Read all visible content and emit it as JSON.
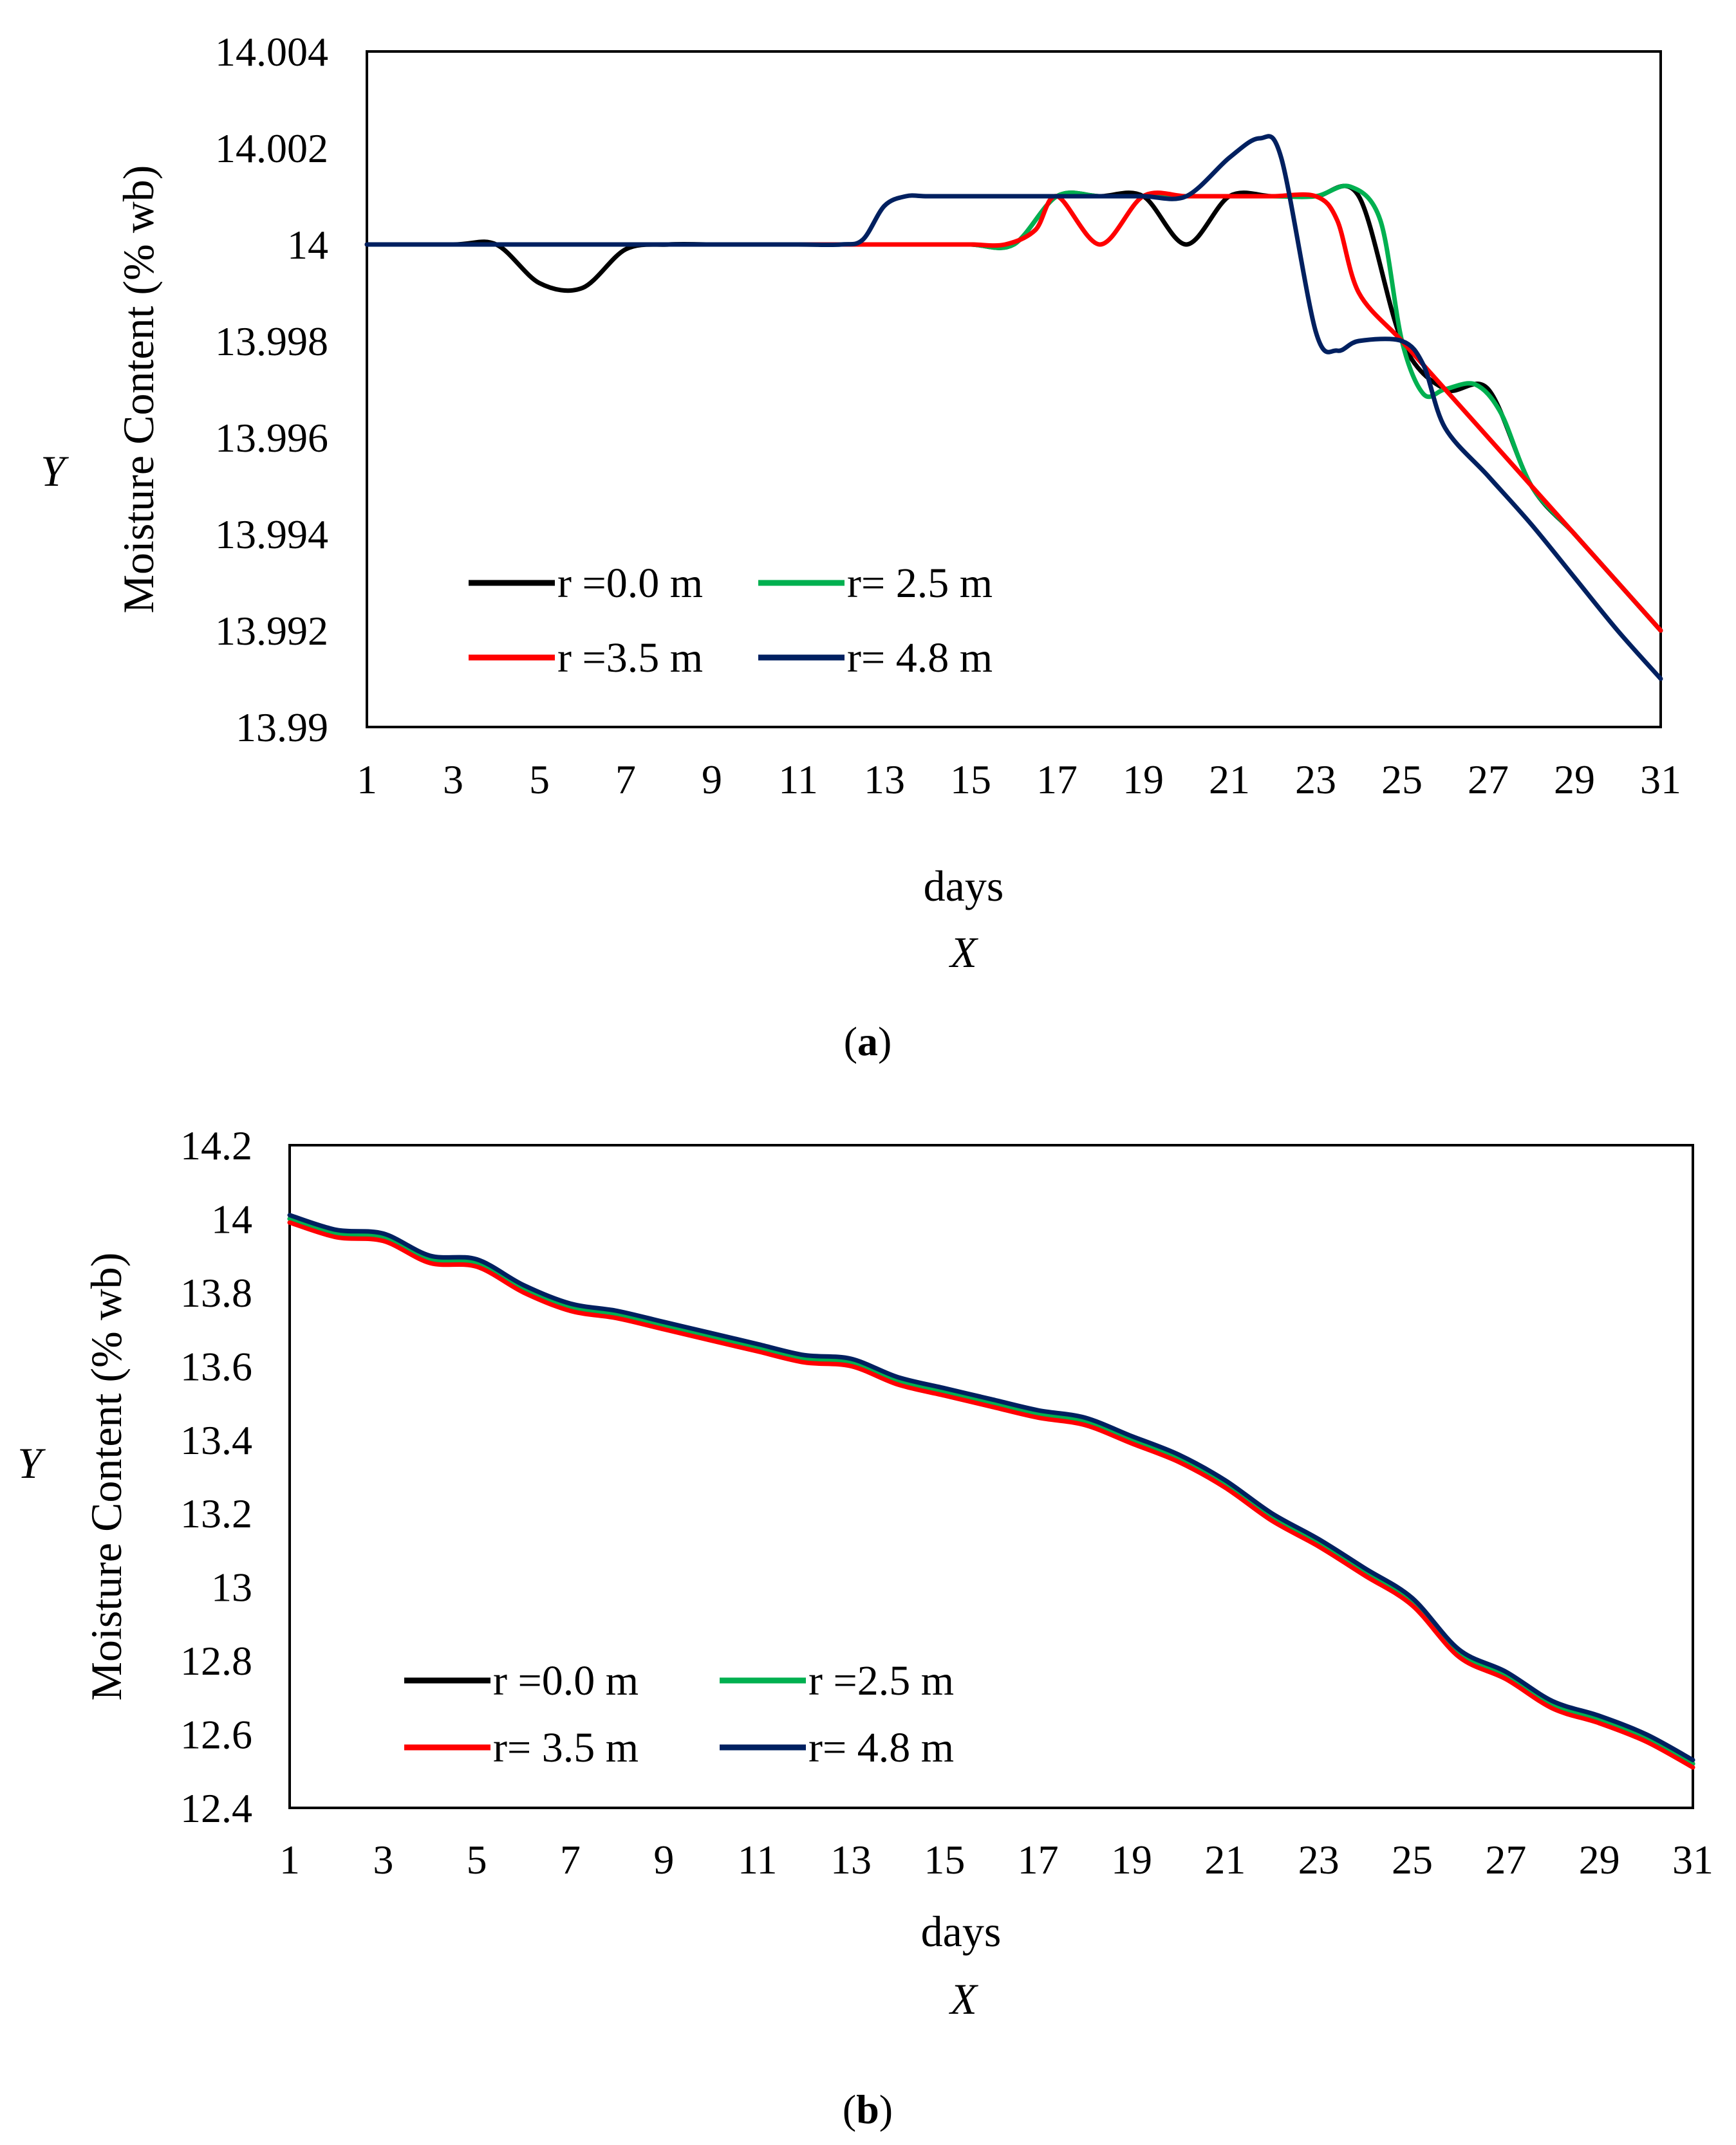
{
  "chart_data": [
    {
      "type": "line",
      "panel": "a",
      "caption": "a",
      "title": "",
      "xlabel": "days",
      "ylabel": "Moisture Content (% wb)",
      "x_variable": "X",
      "y_variable": "Y",
      "xlim": [
        1,
        31
      ],
      "ylim": [
        13.99,
        14.004
      ],
      "x_ticks": [
        "1",
        "3",
        "5",
        "7",
        "9",
        "11",
        "13",
        "15",
        "17",
        "19",
        "21",
        "23",
        "25",
        "27",
        "29",
        "31"
      ],
      "y_ticks": [
        "13.99",
        "13.992",
        "13.994",
        "13.996",
        "13.998",
        "14",
        "14.002",
        "14.004"
      ],
      "x_tick_values": [
        1,
        3,
        5,
        7,
        9,
        11,
        13,
        15,
        17,
        19,
        21,
        23,
        25,
        27,
        29,
        31
      ],
      "y_tick_values": [
        13.99,
        13.992,
        13.994,
        13.996,
        13.998,
        14.0,
        14.002,
        14.004
      ],
      "legend_position": "bottom-left",
      "series": [
        {
          "name": "r =0.0 m",
          "color": "#000000",
          "x": [
            1,
            3,
            4,
            5,
            6,
            7,
            8,
            9,
            10,
            11,
            12,
            13,
            14,
            15,
            16,
            17,
            18,
            19,
            20,
            21,
            22,
            23,
            24,
            25,
            26,
            27,
            28,
            29,
            30,
            31
          ],
          "y": [
            14.0,
            14.0,
            14.0,
            13.9992,
            13.9991,
            13.9999,
            14.0,
            14.0,
            14.0,
            14.0,
            14.0,
            14.0,
            14.0,
            14.0,
            14.0,
            14.001,
            14.001,
            14.001,
            14.0,
            14.001,
            14.001,
            14.001,
            14.001,
            13.998,
            13.997,
            13.997,
            13.995,
            13.994,
            13.993,
            13.992
          ]
        },
        {
          "name": "r= 2.5 m",
          "color": "#00b050",
          "x": [
            1,
            3,
            5,
            7,
            9,
            11,
            12,
            13,
            14,
            15,
            16,
            17,
            18,
            19,
            20,
            21,
            22,
            23,
            23.8,
            24.5,
            25,
            25.5,
            26,
            26.7,
            27.3,
            28,
            29,
            30,
            31
          ],
          "y": [
            14.0,
            14.0,
            14.0,
            14.0,
            14.0,
            14.0,
            14.0,
            14.0,
            14.0,
            14.0,
            14.0,
            14.001,
            14.001,
            14.001,
            14.001,
            14.001,
            14.001,
            14.001,
            14.0012,
            14.0005,
            13.998,
            13.9969,
            13.997,
            13.9971,
            13.9965,
            13.995,
            13.994,
            13.993,
            13.992
          ]
        },
        {
          "name": "r =3.5 m",
          "color": "#ff0000",
          "x": [
            1,
            3,
            5,
            7,
            9,
            11,
            12,
            13,
            14,
            15,
            15.8,
            16.5,
            17,
            18,
            19,
            20,
            21,
            22,
            23,
            23.5,
            24,
            25,
            26,
            27,
            28,
            29,
            30,
            31
          ],
          "y": [
            14.0,
            14.0,
            14.0,
            14.0,
            14.0,
            14.0,
            14.0,
            14.0,
            14.0,
            14.0,
            14.0,
            14.0003,
            14.001,
            14.0,
            14.001,
            14.001,
            14.001,
            14.001,
            14.001,
            14.0005,
            13.999,
            13.998,
            13.997,
            13.996,
            13.995,
            13.994,
            13.993,
            13.992
          ]
        },
        {
          "name": "r= 4.8 m",
          "color": "#002060",
          "x": [
            1,
            3,
            5,
            7,
            9,
            11,
            12,
            12.5,
            13,
            13.5,
            14,
            15,
            16,
            17,
            18,
            19,
            20,
            21,
            21.7,
            22.2,
            23,
            23.5,
            24,
            25,
            25.5,
            26,
            27,
            28,
            29,
            30,
            31
          ],
          "y": [
            14.0,
            14.0,
            14.0,
            14.0,
            14.0,
            14.0,
            14.0,
            14.0001,
            14.0008,
            14.001,
            14.001,
            14.001,
            14.001,
            14.001,
            14.001,
            14.001,
            14.001,
            14.0018,
            14.0022,
            14.0018,
            13.9982,
            13.9978,
            13.998,
            13.998,
            13.9975,
            13.9962,
            13.9952,
            13.9942,
            13.9931,
            13.992,
            13.991
          ]
        }
      ]
    },
    {
      "type": "line",
      "panel": "b",
      "caption": "b",
      "title": "",
      "xlabel": "days",
      "ylabel": "Moisture Content (% wb)",
      "x_variable": "X",
      "y_variable": "Y",
      "xlim": [
        1,
        31
      ],
      "ylim": [
        12.4,
        14.2
      ],
      "x_ticks": [
        "1",
        "3",
        "5",
        "7",
        "9",
        "11",
        "13",
        "15",
        "17",
        "19",
        "21",
        "23",
        "25",
        "27",
        "29",
        "31"
      ],
      "y_ticks": [
        "12.4",
        "12.6",
        "12.8",
        "13",
        "13.2",
        "13.4",
        "13.6",
        "13.8",
        "14",
        "14.2"
      ],
      "x_tick_values": [
        1,
        3,
        5,
        7,
        9,
        11,
        13,
        15,
        17,
        19,
        21,
        23,
        25,
        27,
        29,
        31
      ],
      "y_tick_values": [
        12.4,
        12.6,
        12.8,
        13.0,
        13.2,
        13.4,
        13.6,
        13.8,
        14.0,
        14.2
      ],
      "legend_position": "bottom-left",
      "series": [
        {
          "name": "r =0.0 m",
          "color": "#000000",
          "x": [
            1,
            2,
            3,
            4,
            5,
            6,
            7,
            8,
            9,
            10,
            11,
            12,
            13,
            14,
            15,
            16,
            17,
            18,
            19,
            20,
            21,
            22,
            23,
            24,
            25,
            26,
            27,
            28,
            29,
            30,
            31
          ],
          "y": [
            14.0,
            13.96,
            13.95,
            13.89,
            13.88,
            13.81,
            13.76,
            13.74,
            13.71,
            13.68,
            13.65,
            13.62,
            13.61,
            13.56,
            13.53,
            13.5,
            13.47,
            13.45,
            13.4,
            13.35,
            13.28,
            13.19,
            13.12,
            13.04,
            12.96,
            12.82,
            12.76,
            12.68,
            12.64,
            12.59,
            12.52
          ]
        },
        {
          "name": "r =2.5 m",
          "color": "#00b050",
          "x": [
            1,
            2,
            3,
            4,
            5,
            6,
            7,
            8,
            9,
            10,
            11,
            12,
            13,
            14,
            15,
            16,
            17,
            18,
            19,
            20,
            21,
            22,
            23,
            24,
            25,
            26,
            27,
            28,
            29,
            30,
            31
          ],
          "y": [
            14.0,
            13.96,
            13.95,
            13.89,
            13.88,
            13.81,
            13.76,
            13.74,
            13.71,
            13.68,
            13.65,
            13.62,
            13.61,
            13.56,
            13.53,
            13.5,
            13.47,
            13.45,
            13.4,
            13.35,
            13.28,
            13.19,
            13.12,
            13.04,
            12.96,
            12.82,
            12.76,
            12.68,
            12.64,
            12.59,
            12.52
          ]
        },
        {
          "name": "r= 3.5 m",
          "color": "#ff0000",
          "x": [
            1,
            2,
            3,
            4,
            5,
            6,
            7,
            8,
            9,
            10,
            11,
            12,
            13,
            14,
            15,
            16,
            17,
            18,
            19,
            20,
            21,
            22,
            23,
            24,
            25,
            26,
            27,
            28,
            29,
            30,
            31
          ],
          "y": [
            13.99,
            13.95,
            13.94,
            13.88,
            13.87,
            13.8,
            13.75,
            13.73,
            13.7,
            13.67,
            13.64,
            13.61,
            13.6,
            13.55,
            13.52,
            13.49,
            13.46,
            13.44,
            13.39,
            13.34,
            13.27,
            13.18,
            13.11,
            13.03,
            12.95,
            12.81,
            12.75,
            12.67,
            12.63,
            12.58,
            12.51
          ]
        },
        {
          "name": "r= 4.8 m",
          "color": "#002060",
          "x": [
            1,
            2,
            3,
            4,
            5,
            6,
            7,
            8,
            9,
            10,
            11,
            12,
            13,
            14,
            15,
            16,
            17,
            18,
            19,
            20,
            21,
            22,
            23,
            24,
            25,
            26,
            27,
            28,
            29,
            30,
            31
          ],
          "y": [
            14.01,
            13.97,
            13.96,
            13.9,
            13.89,
            13.82,
            13.77,
            13.75,
            13.72,
            13.69,
            13.66,
            13.63,
            13.62,
            13.57,
            13.54,
            13.51,
            13.48,
            13.46,
            13.41,
            13.36,
            13.29,
            13.2,
            13.13,
            13.05,
            12.97,
            12.83,
            12.77,
            12.69,
            12.65,
            12.6,
            12.53
          ]
        }
      ]
    }
  ]
}
